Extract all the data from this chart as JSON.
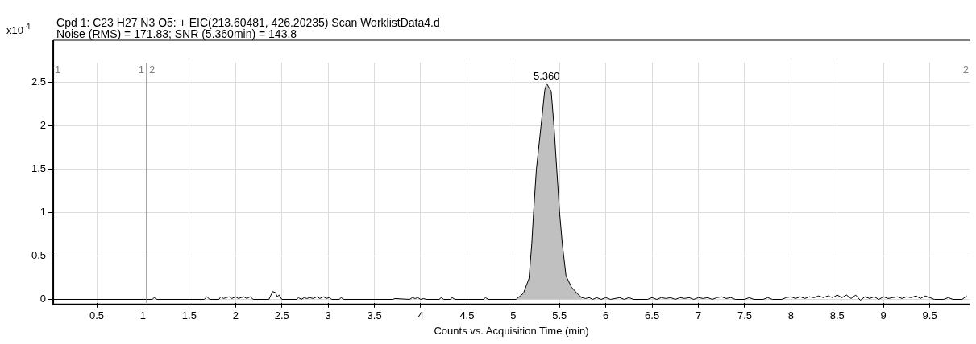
{
  "chart_data": {
    "type": "line",
    "title": "Cpd 1: C23 H27 N3 O5: + EIC(213.60481, 426.20235) Scan WorklistData4.d",
    "subtitle": "Noise (RMS) = 171.83; SNR (5.360min) = 143.8",
    "xlabel": "Counts vs. Acquisition Time (min)",
    "ylabel": "x10$^{4}$",
    "xlim": [
      0.03,
      9.93
    ],
    "xticks": [
      0.5,
      1,
      1.5,
      2,
      2.5,
      3,
      3.5,
      4,
      4.5,
      5,
      5.5,
      6,
      6.5,
      7,
      7.5,
      8,
      8.5,
      9,
      9.5
    ],
    "ylim": [
      -0.04,
      2.73
    ],
    "yticks": [
      0,
      0.5,
      1,
      1.5,
      2,
      2.5
    ],
    "grid": true,
    "legend": false,
    "marker": "none",
    "line_style": "solid",
    "ref_lines": [
      {
        "axis": "x",
        "value": 1.04,
        "color": "#808080"
      }
    ],
    "annotations": [
      {
        "text": "5.360",
        "x": 5.36,
        "y": 2.49
      },
      "1",
      "1",
      "2",
      "2"
    ],
    "series": [
      {
        "type": "area",
        "color": "#c0c0c0",
        "x": [
          5.03,
          5.11,
          5.17,
          5.2,
          5.22,
          5.25,
          5.3,
          5.34,
          5.36,
          5.41,
          5.44,
          5.47,
          5.5,
          5.53,
          5.57,
          5.63,
          5.69,
          5.74
        ],
        "values": [
          0,
          0.07,
          0.24,
          0.64,
          1.01,
          1.5,
          2.0,
          2.41,
          2.49,
          2.4,
          2.0,
          1.5,
          1.01,
          0.64,
          0.27,
          0.14,
          0.07,
          0.02
        ]
      },
      {
        "type": "line",
        "color": "#000000",
        "x": [
          0.03,
          1.1,
          1.12,
          1.15,
          1.66,
          1.69,
          1.72,
          1.82,
          1.84,
          1.87,
          1.93,
          1.96,
          2.0,
          2.03,
          2.06,
          2.09,
          2.12,
          2.16,
          2.19,
          2.36,
          2.4,
          2.43,
          2.45,
          2.47,
          2.5,
          2.66,
          2.68,
          2.71,
          2.74,
          2.77,
          2.8,
          2.84,
          2.88,
          2.91,
          2.95,
          2.98,
          3.01,
          3.04,
          3.12,
          3.14,
          3.17,
          3.7,
          3.72,
          3.88,
          3.91,
          3.94,
          3.97,
          4.0,
          4.03,
          4.06,
          4.2,
          4.22,
          4.25,
          4.32,
          4.34,
          4.37,
          4.68,
          4.7,
          4.73,
          5.03,
          5.11,
          5.17,
          5.2,
          5.22,
          5.25,
          5.3,
          5.34,
          5.36,
          5.41,
          5.44,
          5.47,
          5.5,
          5.53,
          5.57,
          5.63,
          5.69,
          5.74,
          5.78,
          5.82,
          5.86,
          5.9,
          5.95,
          6.0,
          6.05,
          6.15,
          6.2,
          6.25,
          6.3,
          6.45,
          6.5,
          6.55,
          6.6,
          6.65,
          6.7,
          6.75,
          6.8,
          6.85,
          6.9,
          6.95,
          7.0,
          7.05,
          7.1,
          7.15,
          7.2,
          7.25,
          7.3,
          7.35,
          7.4,
          7.5,
          7.55,
          7.6,
          7.7,
          7.75,
          7.8,
          7.9,
          7.95,
          8.0,
          8.05,
          8.1,
          8.15,
          8.2,
          8.25,
          8.3,
          8.35,
          8.4,
          8.45,
          8.5,
          8.55,
          8.6,
          8.65,
          8.7,
          8.75,
          8.8,
          8.85,
          8.9,
          8.95,
          9.0,
          9.05,
          9.1,
          9.15,
          9.2,
          9.25,
          9.3,
          9.35,
          9.4,
          9.45,
          9.5,
          9.55,
          9.65,
          9.7,
          9.75,
          9.85,
          9.9
        ],
        "values": [
          0,
          0,
          0.02,
          0,
          0,
          0.03,
          0,
          0,
          0.03,
          0.01,
          0.03,
          0.01,
          0.03,
          0.01,
          0.02,
          0.03,
          0.01,
          0.03,
          0,
          0,
          0.09,
          0.08,
          0.03,
          0.05,
          0,
          0,
          0.02,
          0,
          0.02,
          0.01,
          0.02,
          0.01,
          0.03,
          0.01,
          0.03,
          0.01,
          0.02,
          0,
          0,
          0.02,
          0,
          0,
          0.01,
          0,
          0.02,
          0.01,
          0.02,
          0,
          0.01,
          0,
          0,
          0.02,
          0,
          0,
          0.02,
          0,
          0,
          0.02,
          0,
          0,
          0.07,
          0.24,
          0.64,
          1.01,
          1.5,
          2.0,
          2.41,
          2.49,
          2.4,
          2.0,
          1.5,
          1.01,
          0.64,
          0.27,
          0.14,
          0.07,
          0.02,
          0.01,
          0.02,
          0,
          0.02,
          0,
          0.02,
          0,
          0.02,
          0,
          0.02,
          0,
          0,
          0.02,
          0,
          0.02,
          0.01,
          0.02,
          0,
          0.02,
          0.01,
          0.02,
          0,
          0.02,
          0.01,
          0.02,
          0,
          0.02,
          0.03,
          0.01,
          0.02,
          0,
          0,
          0.02,
          0,
          0,
          0.02,
          0,
          0,
          0.02,
          0.03,
          0.01,
          0.03,
          0.01,
          0.03,
          0.02,
          0.04,
          0.02,
          0.04,
          0.02,
          0.05,
          0.02,
          0.05,
          0.01,
          0.05,
          -0.01,
          0.03,
          0.01,
          0.03,
          0,
          0.03,
          0.01,
          0.02,
          0.03,
          0.01,
          0.03,
          0.02,
          0.04,
          0.01,
          0.04,
          0.02,
          0,
          0,
          0.02,
          0,
          0,
          0.04
        ]
      }
    ]
  }
}
